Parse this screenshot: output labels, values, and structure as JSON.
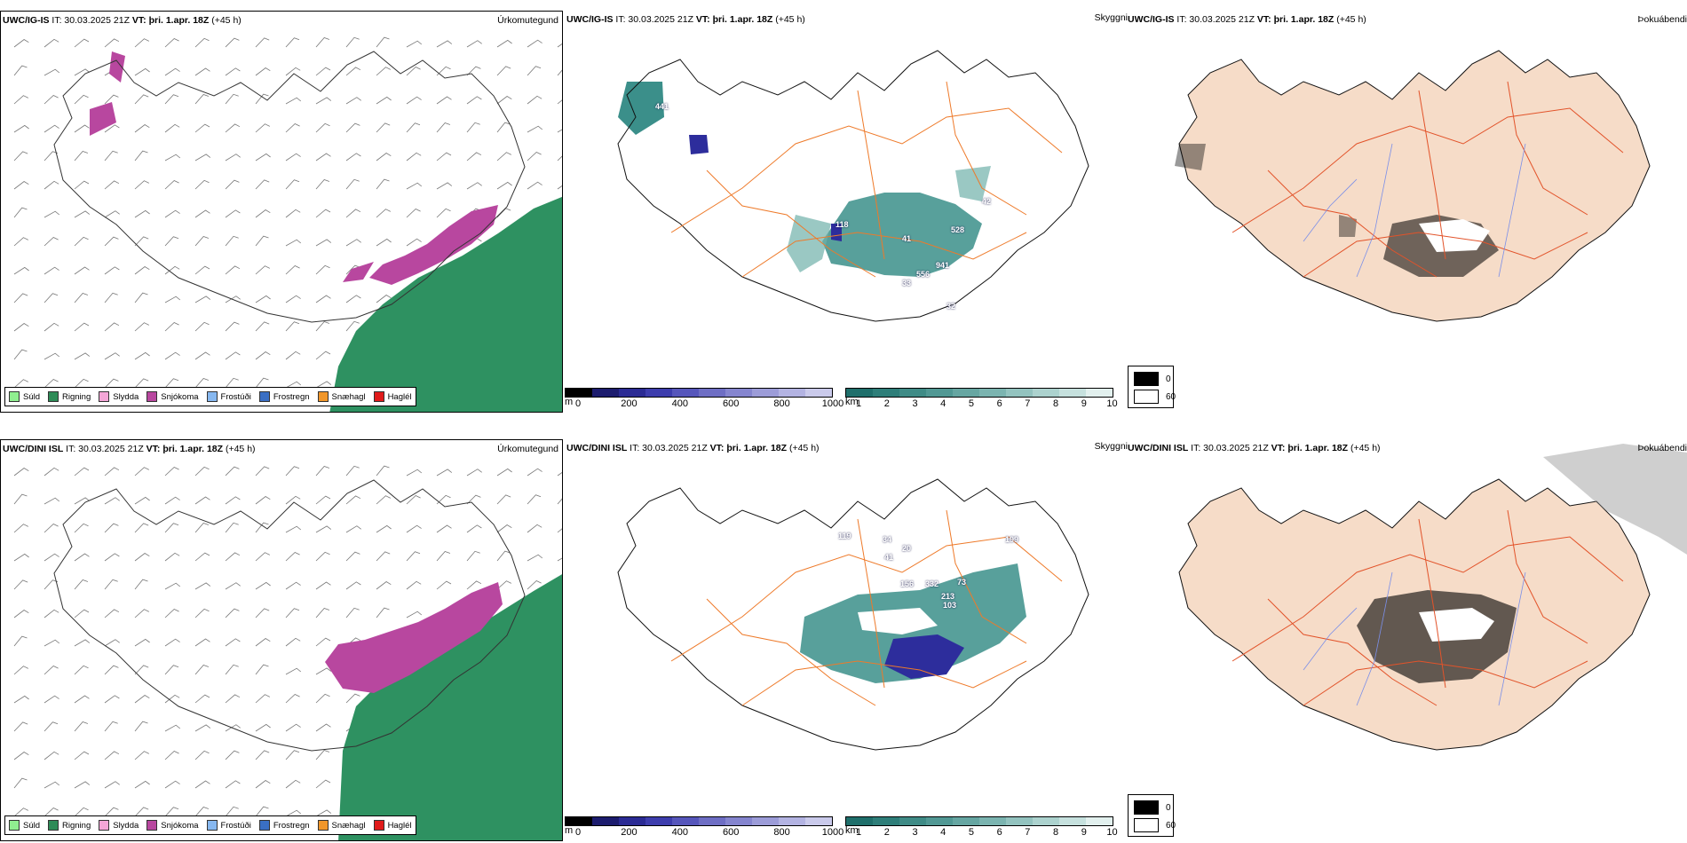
{
  "rows": [
    {
      "precip": {
        "model": "UWC/IG-IS",
        "it": "IT: 30.03.2025 21Z",
        "vt_label": "VT:",
        "vt_value": "þri. 1.apr. 18Z",
        "lead": "(+45 h)",
        "name": "Úrkomutegund"
      },
      "cloud": {
        "model": "UWC/IG-IS",
        "it": "IT: 30.03.2025 21Z",
        "vt_label": "VT:",
        "vt_value": "þri. 1.apr. 18Z",
        "lead": "(+45 h)",
        "name": "Skyggni",
        "labels": [
          "441",
          "118",
          "41",
          "32",
          "528",
          "193",
          "15",
          "941",
          "556",
          "33",
          "32",
          "42"
        ]
      },
      "fog": {
        "model": "UWC/IG-IS",
        "it": "IT: 30.03.2025 21Z",
        "vt_label": "VT:",
        "vt_value": "þri. 1.apr. 18Z",
        "lead": "(+45 h)",
        "name": "Þokuábendi"
      }
    },
    {
      "precip": {
        "model": "UWC/DINI ISL",
        "it": "IT: 30.03.2025 21Z",
        "vt_label": "VT:",
        "vt_value": "þri. 1.apr. 18Z",
        "lead": "(+45 h)",
        "name": "Úrkomutegund"
      },
      "cloud": {
        "model": "UWC/DINI ISL",
        "it": "IT: 30.03.2025 21Z",
        "vt_label": "VT:",
        "vt_value": "þri. 1.apr. 18Z",
        "lead": "(+45 h)",
        "name": "Skyggni",
        "labels": [
          "119",
          "34",
          "41",
          "20",
          "18",
          "156",
          "332",
          "73",
          "199",
          "13",
          "81",
          "213",
          "103"
        ]
      },
      "fog": {
        "model": "UWC/DINI ISL",
        "it": "IT: 30.03.2025 21Z",
        "vt_label": "VT:",
        "vt_value": "þri. 1.apr. 18Z",
        "lead": "(+45 h)",
        "name": "Þokuábendi"
      }
    }
  ],
  "precip_legend": [
    {
      "label": "Súld",
      "color": "#90ee90"
    },
    {
      "label": "Rigning",
      "color": "#2e8b57"
    },
    {
      "label": "Slydda",
      "color": "#f4a6d7"
    },
    {
      "label": "Snjókoma",
      "color": "#b8479f"
    },
    {
      "label": "Frostúði",
      "color": "#87b8f0"
    },
    {
      "label": "Frostregn",
      "color": "#3a6fc4"
    },
    {
      "label": "Snæhagl",
      "color": "#f0962a"
    },
    {
      "label": "Haglél",
      "color": "#e01b1b"
    }
  ],
  "base_legend": {
    "unit": "m",
    "ticks": [
      "0",
      "200",
      "400",
      "600",
      "800",
      "1000"
    ],
    "colors": [
      "#000000",
      "#1c1c6e",
      "#2b2b94",
      "#3d3dad",
      "#5656bb",
      "#6e6ec4",
      "#8585cf",
      "#9c9cd8",
      "#b3b3e2",
      "#cacaeb"
    ]
  },
  "vis_legend": {
    "unit": "km",
    "ticks": [
      "1",
      "2",
      "3",
      "4",
      "5",
      "6",
      "7",
      "8",
      "9",
      "10"
    ],
    "colors": [
      "#1f6f6b",
      "#2e7e79",
      "#3f8b86",
      "#519894",
      "#66a6a2",
      "#7bb4b0",
      "#93c3bf",
      "#acd2ce",
      "#c6e1de",
      "#e2f0ee"
    ]
  },
  "fog_legend": {
    "dark_label": "0",
    "light_label": "60"
  },
  "colors": {
    "rain": "#2e9161",
    "snow": "#b8479f",
    "cloud": "#3b8f8a",
    "road": "#ee7a2a",
    "land": "#f6dcc8"
  }
}
